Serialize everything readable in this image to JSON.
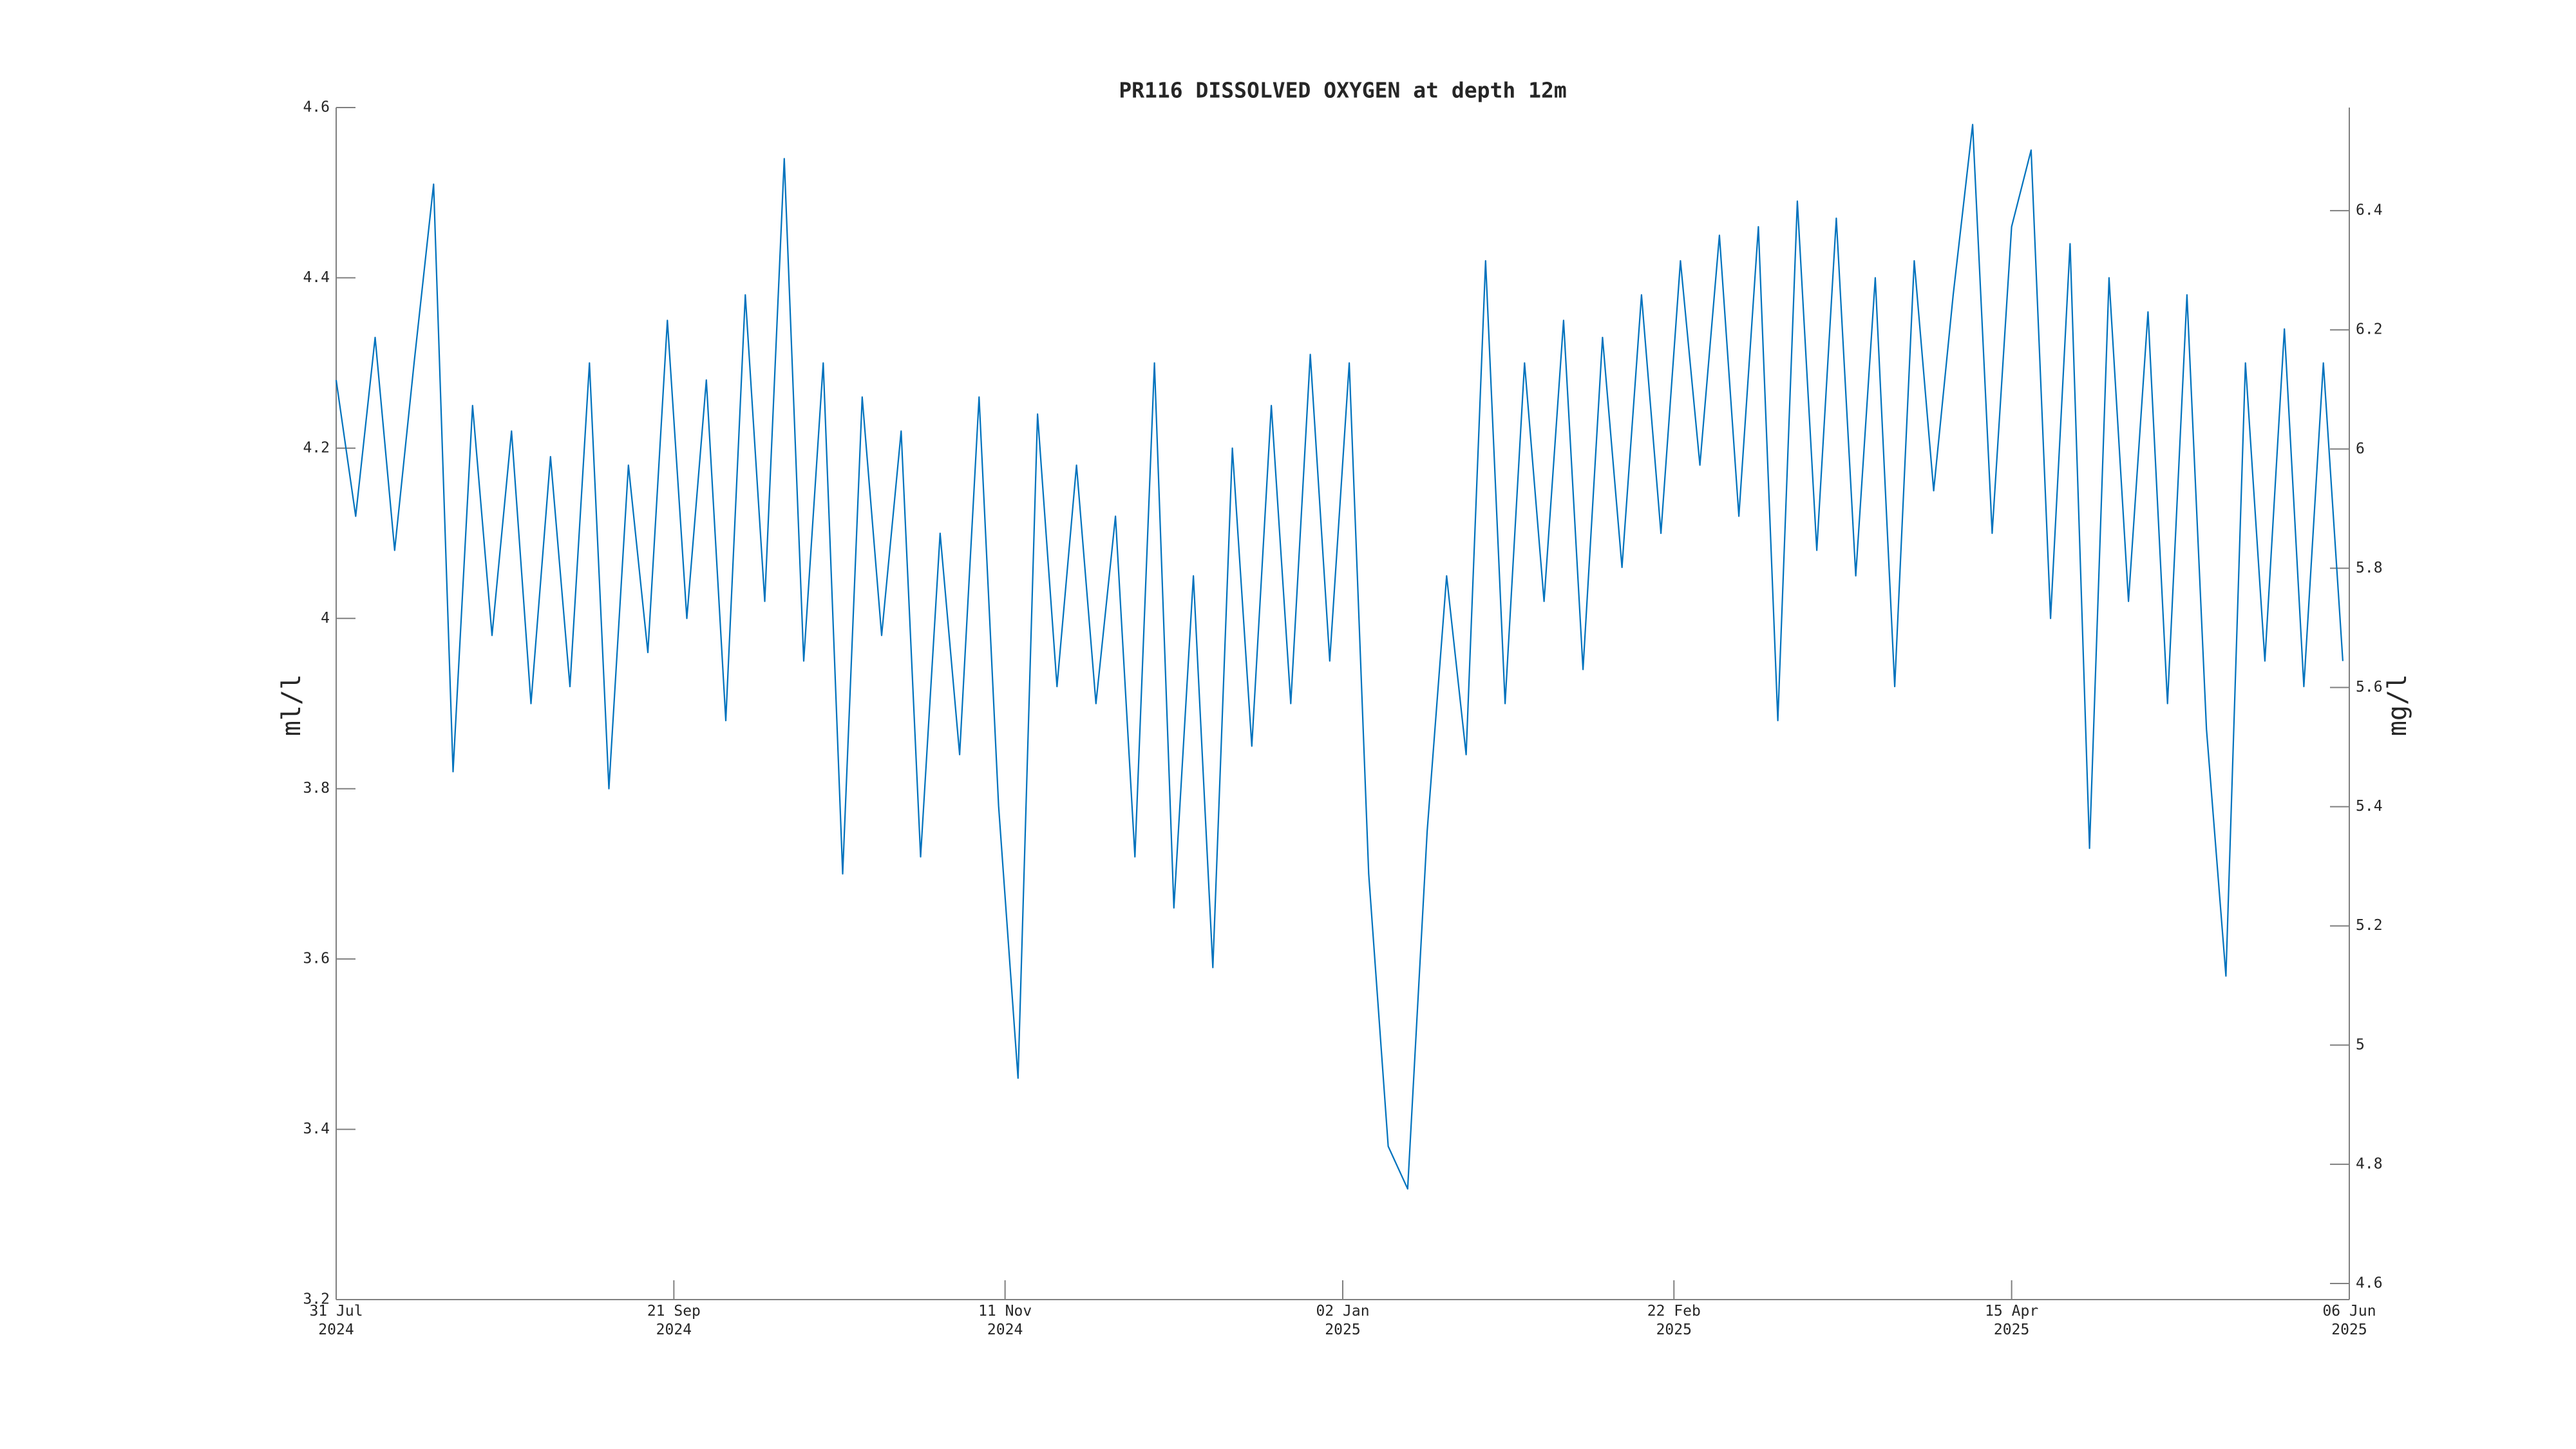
{
  "chart_data": {
    "type": "line",
    "title": "PR116 DISSOLVED OXYGEN at depth 12m",
    "ylabel": "ml/l",
    "y2label": "mg/l",
    "color": "#0072bd",
    "x": [
      "2024-07-31",
      "2024-08-03",
      "2024-08-06",
      "2024-08-09",
      "2024-08-12",
      "2024-08-15",
      "2024-08-18",
      "2024-08-21",
      "2024-08-24",
      "2024-08-27",
      "2024-08-30",
      "2024-09-02",
      "2024-09-05",
      "2024-09-08",
      "2024-09-11",
      "2024-09-14",
      "2024-09-17",
      "2024-09-20",
      "2024-09-23",
      "2024-09-26",
      "2024-09-29",
      "2024-10-02",
      "2024-10-05",
      "2024-10-08",
      "2024-10-11",
      "2024-10-14",
      "2024-10-17",
      "2024-10-20",
      "2024-10-23",
      "2024-10-26",
      "2024-10-29",
      "2024-11-01",
      "2024-11-04",
      "2024-11-07",
      "2024-11-10",
      "2024-11-13",
      "2024-11-16",
      "2024-11-19",
      "2024-11-22",
      "2024-11-25",
      "2024-11-28",
      "2024-12-01",
      "2024-12-04",
      "2024-12-07",
      "2024-12-10",
      "2024-12-13",
      "2024-12-16",
      "2024-12-19",
      "2024-12-22",
      "2024-12-25",
      "2024-12-28",
      "2024-12-31",
      "2025-01-03",
      "2025-01-06",
      "2025-01-09",
      "2025-01-12",
      "2025-01-15",
      "2025-01-18",
      "2025-01-21",
      "2025-01-24",
      "2025-01-27",
      "2025-01-30",
      "2025-02-02",
      "2025-02-05",
      "2025-02-08",
      "2025-02-11",
      "2025-02-14",
      "2025-02-17",
      "2025-02-20",
      "2025-02-23",
      "2025-02-26",
      "2025-03-01",
      "2025-03-04",
      "2025-03-07",
      "2025-03-10",
      "2025-03-13",
      "2025-03-16",
      "2025-03-19",
      "2025-03-22",
      "2025-03-25",
      "2025-03-28",
      "2025-03-31",
      "2025-04-03",
      "2025-04-06",
      "2025-04-09",
      "2025-04-12",
      "2025-04-15",
      "2025-04-18",
      "2025-04-21",
      "2025-04-24",
      "2025-04-27",
      "2025-04-30",
      "2025-05-03",
      "2025-05-06",
      "2025-05-09",
      "2025-05-12",
      "2025-05-15",
      "2025-05-18",
      "2025-05-21",
      "2025-05-24",
      "2025-05-27",
      "2025-05-30",
      "2025-06-02",
      "2025-06-05"
    ],
    "values": [
      4.28,
      4.12,
      4.33,
      4.08,
      4.3,
      4.51,
      3.82,
      4.25,
      3.98,
      4.22,
      3.9,
      4.19,
      3.92,
      4.3,
      3.8,
      4.18,
      3.96,
      4.35,
      4.0,
      4.28,
      3.88,
      4.38,
      4.02,
      4.54,
      3.95,
      4.3,
      3.7,
      4.26,
      3.98,
      4.22,
      3.72,
      4.1,
      3.84,
      4.26,
      3.78,
      3.46,
      4.24,
      3.92,
      4.18,
      3.9,
      4.12,
      3.72,
      4.3,
      3.66,
      4.05,
      3.59,
      4.2,
      3.85,
      4.25,
      3.9,
      4.31,
      3.95,
      4.3,
      3.7,
      3.38,
      3.33,
      3.75,
      4.05,
      3.84,
      4.42,
      3.9,
      4.3,
      4.02,
      4.35,
      3.94,
      4.33,
      4.06,
      4.38,
      4.1,
      4.42,
      4.18,
      4.45,
      4.12,
      4.46,
      3.88,
      4.49,
      4.08,
      4.47,
      4.05,
      4.4,
      3.92,
      4.42,
      4.15,
      4.38,
      4.58,
      4.1,
      4.46,
      4.55,
      4.0,
      4.44,
      3.73,
      4.4,
      4.02,
      4.36,
      3.9,
      4.38,
      3.87,
      3.58,
      4.3,
      3.95,
      4.34,
      3.92,
      4.3,
      3.95
    ],
    "xlim": [
      "2024-07-31",
      "2025-06-06"
    ],
    "xticks": [
      {
        "value": "2024-07-31",
        "label": "31 Jul\n2024"
      },
      {
        "value": "2024-09-21",
        "label": "21 Sep\n2024"
      },
      {
        "value": "2024-11-11",
        "label": "11 Nov\n2024"
      },
      {
        "value": "2025-01-02",
        "label": "02 Jan\n2025"
      },
      {
        "value": "2025-02-22",
        "label": "22 Feb\n2025"
      },
      {
        "value": "2025-04-15",
        "label": "15 Apr\n2025"
      },
      {
        "value": "2025-06-06",
        "label": "06 Jun\n2025"
      }
    ],
    "ylim": [
      3.2,
      4.6
    ],
    "yticks": [
      3.2,
      3.4,
      3.6,
      3.8,
      4,
      4.2,
      4.4,
      4.6
    ],
    "y2lim": [
      4.573,
      6.573
    ],
    "y2ticks": [
      4.6,
      4.8,
      5,
      5.2,
      5.4,
      5.6,
      5.8,
      6,
      6.2,
      6.4
    ],
    "grid": false
  }
}
